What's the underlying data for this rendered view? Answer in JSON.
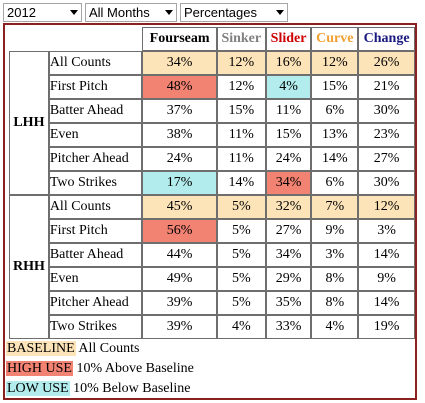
{
  "filters": {
    "year": "2012",
    "months": "All Months",
    "stat": "Percentages"
  },
  "colors": {
    "baseline": "#fde3b8",
    "high_use": "#f28272",
    "low_use": "#b3ecec",
    "fourseam": "#000000",
    "sinker": "#808080",
    "slider": "#cc0000",
    "curve": "#f0a030",
    "change": "#1a1a80",
    "frame": "#8b2020"
  },
  "pitches": [
    "Fourseam",
    "Sinker",
    "Slider",
    "Curve",
    "Change"
  ],
  "groups": [
    {
      "label": "LHH",
      "rows": [
        {
          "situation": "All Counts",
          "values": [
            "34%",
            "12%",
            "16%",
            "12%",
            "26%"
          ],
          "hl": [
            "b",
            "b",
            "b",
            "b",
            "b"
          ]
        },
        {
          "situation": "First Pitch",
          "values": [
            "48%",
            "12%",
            "4%",
            "15%",
            "21%"
          ],
          "hl": [
            "h",
            "",
            "l",
            "",
            ""
          ]
        },
        {
          "situation": "Batter Ahead",
          "values": [
            "37%",
            "15%",
            "11%",
            "6%",
            "30%"
          ],
          "hl": [
            "",
            "",
            "",
            "",
            ""
          ]
        },
        {
          "situation": "Even",
          "values": [
            "38%",
            "11%",
            "15%",
            "13%",
            "23%"
          ],
          "hl": [
            "",
            "",
            "",
            "",
            ""
          ]
        },
        {
          "situation": "Pitcher Ahead",
          "values": [
            "24%",
            "11%",
            "24%",
            "14%",
            "27%"
          ],
          "hl": [
            "",
            "",
            "",
            "",
            ""
          ]
        },
        {
          "situation": "Two Strikes",
          "values": [
            "17%",
            "14%",
            "34%",
            "6%",
            "30%"
          ],
          "hl": [
            "l",
            "",
            "h",
            "",
            ""
          ]
        }
      ]
    },
    {
      "label": "RHH",
      "rows": [
        {
          "situation": "All Counts",
          "values": [
            "45%",
            "5%",
            "32%",
            "7%",
            "12%"
          ],
          "hl": [
            "b",
            "b",
            "b",
            "b",
            "b"
          ]
        },
        {
          "situation": "First Pitch",
          "values": [
            "56%",
            "5%",
            "27%",
            "9%",
            "3%"
          ],
          "hl": [
            "h",
            "",
            "",
            "",
            ""
          ]
        },
        {
          "situation": "Batter Ahead",
          "values": [
            "44%",
            "5%",
            "34%",
            "3%",
            "14%"
          ],
          "hl": [
            "",
            "",
            "",
            "",
            ""
          ]
        },
        {
          "situation": "Even",
          "values": [
            "49%",
            "5%",
            "29%",
            "8%",
            "9%"
          ],
          "hl": [
            "",
            "",
            "",
            "",
            ""
          ]
        },
        {
          "situation": "Pitcher Ahead",
          "values": [
            "39%",
            "5%",
            "35%",
            "8%",
            "14%"
          ],
          "hl": [
            "",
            "",
            "",
            "",
            ""
          ]
        },
        {
          "situation": "Two Strikes",
          "values": [
            "39%",
            "4%",
            "33%",
            "4%",
            "19%"
          ],
          "hl": [
            "",
            "",
            "",
            "",
            ""
          ]
        }
      ]
    }
  ],
  "legend": [
    {
      "swatch": "BASELINE",
      "text": "All Counts",
      "kind": "b"
    },
    {
      "swatch": "HIGH USE",
      "text": "10% Above Baseline",
      "kind": "h"
    },
    {
      "swatch": "LOW USE",
      "text": "10% Below Baseline",
      "kind": "l"
    }
  ]
}
